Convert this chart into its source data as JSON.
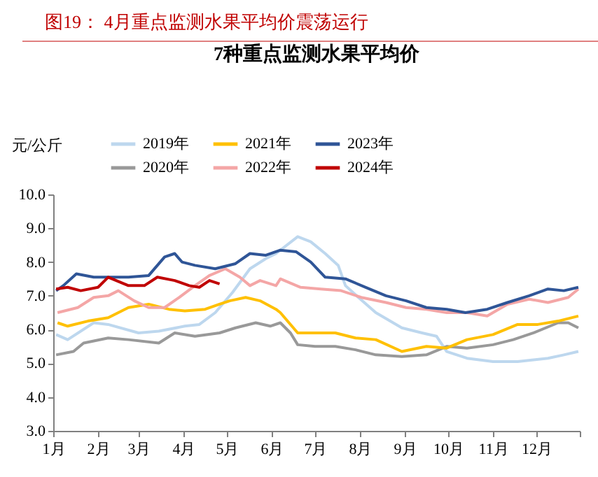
{
  "chart_data": {
    "type": "line",
    "title": "图19： 4月重点监测水果平均价震荡运行",
    "subtitle": "7种重点监测水果平均价",
    "ylabel": "元/公斤",
    "xlim": [
      "--01-01",
      "--12-31"
    ],
    "xticks": [
      {
        "value": "--01-01",
        "label": "1月"
      },
      {
        "value": "--02-01",
        "label": "2月"
      },
      {
        "value": "--03-01",
        "label": "3月"
      },
      {
        "value": "--04-01",
        "label": "4月"
      },
      {
        "value": "--05-01",
        "label": "5月"
      },
      {
        "value": "--06-01",
        "label": "6月"
      },
      {
        "value": "--07-01",
        "label": "7月"
      },
      {
        "value": "--08-01",
        "label": "8月"
      },
      {
        "value": "--09-01",
        "label": "9月"
      },
      {
        "value": "--10-01",
        "label": "10月"
      },
      {
        "value": "--11-01",
        "label": "11月"
      },
      {
        "value": "--12-01",
        "label": "12月"
      },
      {
        "value": "--12-31",
        "label": null
      }
    ],
    "ylim": [
      3,
      10
    ],
    "yticks": [
      {
        "value": 3,
        "label": "3.0"
      },
      {
        "value": 4,
        "label": "4.0"
      },
      {
        "value": 5,
        "label": "5.0"
      },
      {
        "value": 6,
        "label": "6.0"
      },
      {
        "value": 7,
        "label": "7.0"
      },
      {
        "value": 8,
        "label": "8.0"
      },
      {
        "value": 9,
        "label": "9.0"
      },
      {
        "value": 10,
        "label": "10.0"
      }
    ],
    "grid": false,
    "legend": "top",
    "marker": "none",
    "line_style": "solid",
    "series": [
      {
        "name": "2019年",
        "color": "#bdd7ee",
        "x": [
          "--01-03",
          "--01-11",
          "--01-29",
          "--02-08",
          "--03-01",
          "--03-15",
          "--04-02",
          "--04-12",
          "--04-23",
          "--05-05",
          "--05-17",
          "--05-28",
          "--06-04",
          "--06-19",
          "--06-28",
          "--07-08",
          "--07-17",
          "--07-22",
          "--07-31",
          "--08-12",
          "--08-30",
          "--09-13",
          "--09-23",
          "--09-30",
          "--10-14",
          "--11-01",
          "--11-18",
          "--11-29",
          "--12-09",
          "--12-20",
          "--12-30"
        ],
        "values": [
          5.85,
          5.7,
          6.2,
          6.15,
          5.9,
          5.95,
          6.1,
          6.15,
          6.5,
          7.1,
          7.8,
          8.1,
          8.25,
          8.75,
          8.6,
          8.25,
          7.9,
          7.3,
          6.95,
          6.5,
          6.05,
          5.9,
          5.8,
          5.35,
          5.15,
          5.05,
          5.05,
          5.1,
          5.15,
          5.25,
          5.35
        ]
      },
      {
        "name": "2020年",
        "color": "#999999",
        "x": [
          "--01-03",
          "--01-15",
          "--01-22",
          "--02-08",
          "--02-22",
          "--03-15",
          "--03-26",
          "--04-09",
          "--04-26",
          "--05-07",
          "--05-21",
          "--05-31",
          "--06-07",
          "--06-14",
          "--06-19",
          "--07-01",
          "--07-15",
          "--07-29",
          "--08-12",
          "--08-30",
          "--09-16",
          "--09-30",
          "--10-14",
          "--11-01",
          "--11-15",
          "--11-29",
          "--12-16",
          "--12-23",
          "--12-30"
        ],
        "values": [
          5.25,
          5.35,
          5.6,
          5.75,
          5.7,
          5.6,
          5.9,
          5.8,
          5.9,
          6.05,
          6.2,
          6.1,
          6.2,
          5.9,
          5.55,
          5.5,
          5.5,
          5.4,
          5.25,
          5.2,
          5.25,
          5.5,
          5.45,
          5.55,
          5.7,
          5.9,
          6.2,
          6.2,
          6.05
        ]
      },
      {
        "name": "2021年",
        "color": "#ffc000",
        "x": [
          "--01-04",
          "--01-11",
          "--01-25",
          "--02-08",
          "--02-22",
          "--03-08",
          "--03-22",
          "--04-02",
          "--04-16",
          "--04-26",
          "--05-03",
          "--05-14",
          "--05-24",
          "--06-04",
          "--06-07",
          "--06-19",
          "--07-01",
          "--07-15",
          "--07-29",
          "--08-12",
          "--08-30",
          "--09-16",
          "--09-30",
          "--10-14",
          "--11-01",
          "--11-18",
          "--12-02",
          "--12-16",
          "--12-30"
        ],
        "values": [
          6.2,
          6.1,
          6.25,
          6.35,
          6.65,
          6.75,
          6.6,
          6.55,
          6.6,
          6.75,
          6.85,
          6.95,
          6.85,
          6.6,
          6.5,
          5.9,
          5.9,
          5.9,
          5.75,
          5.7,
          5.35,
          5.5,
          5.45,
          5.7,
          5.85,
          6.15,
          6.15,
          6.25,
          6.4
        ]
      },
      {
        "name": "2022年",
        "color": "#f4a6a6",
        "x": [
          "--01-04",
          "--01-18",
          "--01-29",
          "--02-08",
          "--02-15",
          "--02-26",
          "--03-08",
          "--03-19",
          "--03-29",
          "--04-09",
          "--04-19",
          "--04-30",
          "--05-10",
          "--05-17",
          "--05-24",
          "--06-04",
          "--06-07",
          "--06-21",
          "--07-05",
          "--07-19",
          "--08-02",
          "--08-19",
          "--09-02",
          "--09-16",
          "--09-30",
          "--10-14",
          "--10-28",
          "--11-11",
          "--11-26",
          "--12-09",
          "--12-23",
          "--12-30"
        ],
        "values": [
          6.5,
          6.65,
          6.95,
          7.0,
          7.15,
          6.85,
          6.65,
          6.65,
          6.95,
          7.3,
          7.6,
          7.8,
          7.55,
          7.3,
          7.45,
          7.3,
          7.5,
          7.25,
          7.2,
          7.15,
          6.95,
          6.8,
          6.65,
          6.6,
          6.5,
          6.5,
          6.4,
          6.75,
          6.9,
          6.8,
          6.95,
          7.2
        ]
      },
      {
        "name": "2023年",
        "color": "#2f5597",
        "x": [
          "--01-03",
          "--01-08",
          "--01-17",
          "--01-29",
          "--02-08",
          "--02-22",
          "--03-08",
          "--03-19",
          "--03-26",
          "--03-31",
          "--04-09",
          "--04-23",
          "--05-07",
          "--05-17",
          "--05-28",
          "--06-07",
          "--06-18",
          "--06-28",
          "--07-08",
          "--07-22",
          "--08-05",
          "--08-19",
          "--09-02",
          "--09-16",
          "--09-30",
          "--10-13",
          "--10-28",
          "--11-11",
          "--11-26",
          "--12-09",
          "--12-20",
          "--12-30"
        ],
        "values": [
          7.15,
          7.3,
          7.65,
          7.55,
          7.55,
          7.55,
          7.6,
          8.15,
          8.25,
          8.0,
          7.9,
          7.8,
          7.95,
          8.25,
          8.2,
          8.35,
          8.3,
          8.0,
          7.55,
          7.5,
          7.25,
          7.0,
          6.85,
          6.65,
          6.6,
          6.5,
          6.6,
          6.8,
          7.0,
          7.2,
          7.15,
          7.25
        ]
      },
      {
        "name": "2024年",
        "color": "#c00000",
        "x": [
          "--01-03",
          "--01-11",
          "--01-20",
          "--02-01",
          "--02-08",
          "--02-22",
          "--03-05",
          "--03-14",
          "--03-26",
          "--04-05",
          "--04-12",
          "--04-19",
          "--04-26"
        ],
        "values": [
          7.2,
          7.25,
          7.15,
          7.25,
          7.55,
          7.3,
          7.3,
          7.55,
          7.45,
          7.3,
          7.25,
          7.45,
          7.35
        ]
      }
    ]
  }
}
